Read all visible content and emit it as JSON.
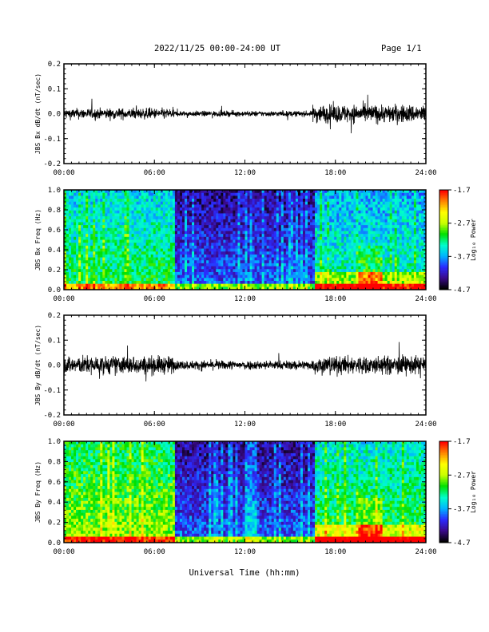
{
  "header": {
    "date_range": "2022/11/25  00:00-24:00 UT",
    "page": "Page 1/1"
  },
  "xlabel": "Universal Time (hh:mm)",
  "x_ticks": [
    "00:00",
    "06:00",
    "12:00",
    "18:00",
    "24:00"
  ],
  "colorbar": {
    "label": "Log₁₀ Power",
    "ticks": [
      "-1.7",
      "-2.7",
      "-3.7",
      "-4.7"
    ],
    "range": [
      -4.7,
      -1.7
    ],
    "colors": [
      "#000000",
      "#3b0a8c",
      "#2b2bff",
      "#00b4ff",
      "#00ffcc",
      "#00e000",
      "#c8ff00",
      "#ffff00",
      "#ff8800",
      "#ff0000"
    ]
  },
  "chart_data": [
    {
      "type": "line",
      "ylabel": "JBS Bx dB/dt (nT/sec)",
      "ylim": [
        -0.2,
        0.2
      ],
      "y_ticks": [
        "0.2",
        "0.1",
        "0.0",
        "-0.1",
        "-0.2"
      ],
      "x_range_hours": [
        0,
        24
      ],
      "series_envelope": [
        {
          "start_hour": 0,
          "end_hour": 7.3,
          "amplitude": 0.035
        },
        {
          "start_hour": 7.3,
          "end_hour": 16.5,
          "amplitude": 0.018
        },
        {
          "start_hour": 16.5,
          "end_hour": 24,
          "amplitude": 0.06
        }
      ],
      "color": "#000000"
    },
    {
      "type": "heatmap",
      "ylabel": "JBS Bx Freq (Hz)",
      "ylim": [
        0,
        1.0
      ],
      "y_ticks": [
        "1.0",
        "0.8",
        "0.6",
        "0.4",
        "0.2",
        "0.0"
      ],
      "x_range_hours": [
        0,
        24
      ],
      "value_range": [
        -4.7,
        -1.7
      ]
    },
    {
      "type": "line",
      "ylabel": "JBS By dB/dt (nT/sec)",
      "ylim": [
        -0.2,
        0.2
      ],
      "y_ticks": [
        "0.2",
        "0.1",
        "0.0",
        "-0.1",
        "-0.2"
      ],
      "x_range_hours": [
        0,
        24
      ],
      "series_envelope": [
        {
          "start_hour": 0,
          "end_hour": 7.3,
          "amplitude": 0.06
        },
        {
          "start_hour": 7.3,
          "end_hour": 16.5,
          "amplitude": 0.03
        },
        {
          "start_hour": 16.5,
          "end_hour": 24,
          "amplitude": 0.06
        }
      ],
      "color": "#000000"
    },
    {
      "type": "heatmap",
      "ylabel": "JBS By Freq (Hz)",
      "ylim": [
        0,
        1.0
      ],
      "y_ticks": [
        "1.0",
        "0.8",
        "0.6",
        "0.4",
        "0.2",
        "0.0"
      ],
      "x_range_hours": [
        0,
        24
      ],
      "value_range": [
        -4.7,
        -1.7
      ]
    }
  ]
}
